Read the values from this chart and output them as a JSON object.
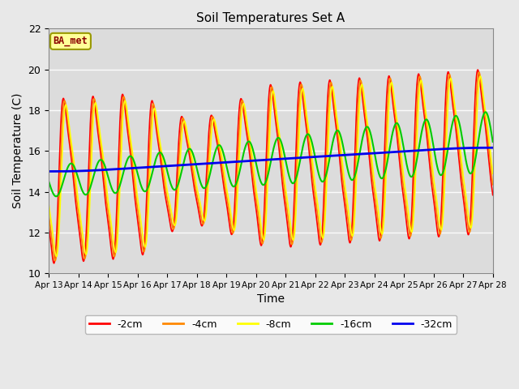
{
  "title": "Soil Temperatures Set A",
  "xlabel": "Time",
  "ylabel": "Soil Temperature (C)",
  "ylim": [
    10,
    22
  ],
  "background_color": "#e8e8e8",
  "plot_bg_color": "#dcdcdc",
  "annotation_text": "BA_met",
  "annotation_box_color": "#ffff99",
  "annotation_text_color": "#8b0000",
  "legend_entries": [
    "-2cm",
    "-4cm",
    "-8cm",
    "-16cm",
    "-32cm"
  ],
  "line_colors": [
    "#ff0000",
    "#ff8800",
    "#ffff00",
    "#00cc00",
    "#0000ee"
  ],
  "line_widths": [
    1.2,
    1.2,
    1.2,
    1.5,
    2.0
  ],
  "tick_labels": [
    "Apr 13",
    "Apr 14",
    "Apr 15",
    "Apr 16",
    "Apr 17",
    "Apr 18",
    "Apr 19",
    "Apr 20",
    "Apr 21",
    "Apr 22",
    "Apr 23",
    "Apr 24",
    "Apr 25",
    "Apr 26",
    "Apr 27",
    "Apr 28"
  ],
  "yticks": [
    10,
    12,
    14,
    16,
    18,
    20,
    22
  ],
  "n_days": 15,
  "n_per_day": 144
}
